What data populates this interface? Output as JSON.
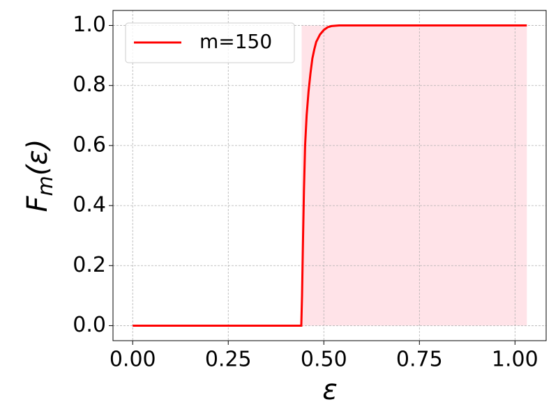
{
  "chart_data": {
    "type": "line",
    "xlabel": "ε",
    "ylabel": {
      "base": "F",
      "sub": "m",
      "rest": "(ε)"
    },
    "x": [
      0,
      0.441,
      0.443,
      0.445,
      0.448,
      0.451,
      0.455,
      0.46,
      0.465,
      0.47,
      0.475,
      0.48,
      0.49,
      0.5,
      0.51,
      0.52,
      0.54,
      1.031
    ],
    "series": [
      {
        "name": "m=150",
        "color": "#ff0000",
        "values": [
          0,
          0,
          0.1,
          0.25,
          0.45,
          0.6,
          0.7,
          0.78,
          0.84,
          0.89,
          0.92,
          0.945,
          0.97,
          0.985,
          0.994,
          0.998,
          1.0,
          1.0
        ]
      }
    ],
    "shaded_region": {
      "x": [
        0.442,
        1.031
      ],
      "y": [
        0,
        1
      ],
      "color": "#ffc0cb"
    },
    "xlim": [
      -0.0515,
      1.0815
    ],
    "ylim": [
      -0.05,
      1.05
    ],
    "xticks": [
      {
        "value": 0,
        "label": "0.00"
      },
      {
        "value": 0.25,
        "label": "0.25"
      },
      {
        "value": 0.5,
        "label": "0.50"
      },
      {
        "value": 0.75,
        "label": "0.75"
      },
      {
        "value": 1,
        "label": "1.00"
      }
    ],
    "yticks": [
      {
        "value": 0,
        "label": "0.0"
      },
      {
        "value": 0.2,
        "label": "0.2"
      },
      {
        "value": 0.4,
        "label": "0.4"
      },
      {
        "value": 0.6,
        "label": "0.6"
      },
      {
        "value": 0.8,
        "label": "0.8"
      },
      {
        "value": 1,
        "label": "1.0"
      }
    ],
    "grid": true,
    "legend": "upper left"
  }
}
